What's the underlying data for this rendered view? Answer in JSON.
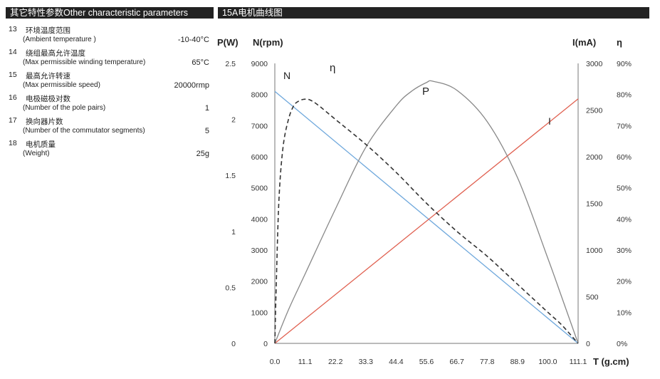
{
  "headers": {
    "left": "其它特性参数Other characteristic parameters",
    "right": "15A电机曲线图"
  },
  "parameters": [
    {
      "no": "13",
      "zh": "环境温度范围",
      "en": "(Ambient  temperature )",
      "value": "-10-40°C"
    },
    {
      "no": "14",
      "zh": "绕组最高允许温度",
      "en": "(Max permissible winding temperature)",
      "value": "65°C"
    },
    {
      "no": "15",
      "zh": "最高允许转速",
      "en": "(Max permissible speed)",
      "value": "20000rmp"
    },
    {
      "no": "16",
      "zh": "电极磁极对数",
      "en": "(Number of  the pole pairs)",
      "value": "1"
    },
    {
      "no": "17",
      "zh": "换向器片数",
      "en": "(Number of the  commutator  segments)",
      "value": "5"
    },
    {
      "no": "18",
      "zh": "电机质量",
      "en": "(Weight)",
      "value": "25g"
    }
  ],
  "colors": {
    "n_curve": "#6fa8dc",
    "i_curve": "#e06050",
    "p_curve": "#888888",
    "eta_curve": "#333333",
    "axis": "#777777",
    "header_bg": "#222222"
  },
  "chart_data": {
    "type": "line",
    "title": "15A电机曲线图",
    "x": {
      "label": "T (g.cm)",
      "ticks": [
        "0.0",
        "11.1",
        "22.2",
        "33.3",
        "44.4",
        "55.6",
        "66.7",
        "77.8",
        "88.9",
        "100.0",
        "111.1"
      ],
      "range": [
        0,
        111.1
      ]
    },
    "axes": {
      "p": {
        "label": "P(W)",
        "range": [
          0,
          2.5
        ],
        "ticks": [
          "0",
          "0.5",
          "1",
          "1.5",
          "2",
          "2.5"
        ]
      },
      "n": {
        "label": "N(rpm)",
        "range": [
          0,
          9000
        ],
        "ticks": [
          "0",
          "1000",
          "2000",
          "3000",
          "4000",
          "5000",
          "6000",
          "7000",
          "8000",
          "9000"
        ]
      },
      "i": {
        "label": "I(mA)",
        "range": [
          0,
          3000
        ],
        "ticks": [
          "0",
          "500",
          "1000",
          "1500",
          "2000",
          "2500",
          "3000"
        ]
      },
      "eta": {
        "label": "η",
        "range": [
          0,
          90
        ],
        "ticks": [
          "0%",
          "10%",
          "20%",
          "30%",
          "40%",
          "50%",
          "60%",
          "70%",
          "80%",
          "90%"
        ]
      }
    },
    "series": [
      {
        "name": "N",
        "axis": "n",
        "style": "solid",
        "x": [
          0,
          111.1
        ],
        "values": [
          8100,
          0
        ]
      },
      {
        "name": "I",
        "axis": "i",
        "style": "solid",
        "x": [
          0,
          111.1
        ],
        "values": [
          0,
          2620
        ]
      },
      {
        "name": "P",
        "axis": "p",
        "style": "solid",
        "x": [
          0,
          5,
          11.1,
          22.2,
          33.3,
          44.4,
          50,
          55.6,
          58,
          66.7,
          77.8,
          88.9,
          100,
          105,
          111.1
        ],
        "values": [
          0,
          0.3,
          0.62,
          1.2,
          1.75,
          2.12,
          2.25,
          2.33,
          2.34,
          2.26,
          1.98,
          1.48,
          0.76,
          0.42,
          0
        ]
      },
      {
        "name": "η",
        "axis": "eta",
        "style": "dashed",
        "x": [
          0,
          0.5,
          1.5,
          3,
          5,
          7,
          9,
          11.1,
          13,
          16,
          22.2,
          33.3,
          44.4,
          55.6,
          66.7,
          77.8,
          88.9,
          100,
          105,
          111.1
        ],
        "values": [
          0,
          18,
          46,
          63,
          72,
          76.5,
          78,
          78.5,
          78.2,
          76.5,
          72,
          64,
          55,
          45,
          36,
          28,
          19,
          10,
          6,
          0
        ]
      }
    ],
    "curve_labels": [
      "N",
      "η",
      "P",
      "I"
    ]
  }
}
